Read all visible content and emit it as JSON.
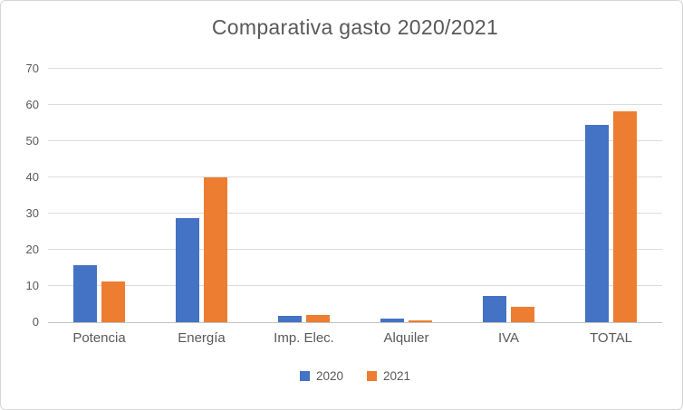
{
  "chart_data": {
    "type": "bar",
    "title": "Comparativa gasto 2020/2021",
    "categories": [
      "Potencia",
      "Energía",
      "Imp. Elec.",
      "Alquiler",
      "IVA",
      "TOTAL"
    ],
    "series": [
      {
        "name": "2020",
        "color": "#4472C4",
        "values": [
          15.7,
          28.8,
          1.8,
          0.9,
          7.3,
          54.5
        ]
      },
      {
        "name": "2021",
        "color": "#ED7D31",
        "values": [
          11.3,
          40.0,
          2.1,
          0.6,
          4.2,
          58.2
        ]
      }
    ],
    "xlabel": "",
    "ylabel": "",
    "ylim": [
      0,
      70
    ],
    "yticks": [
      0,
      10,
      20,
      30,
      40,
      50,
      60,
      70
    ],
    "grid": true,
    "legend_position": "bottom",
    "colors": {
      "series_2020": "#4472C4",
      "series_2021": "#ED7D31",
      "gridline": "#DCDCDC",
      "axis_line": "#C3C3C3",
      "text": "#595959",
      "background": "#FFFFFF",
      "card_border": "#D6D6D6"
    }
  }
}
